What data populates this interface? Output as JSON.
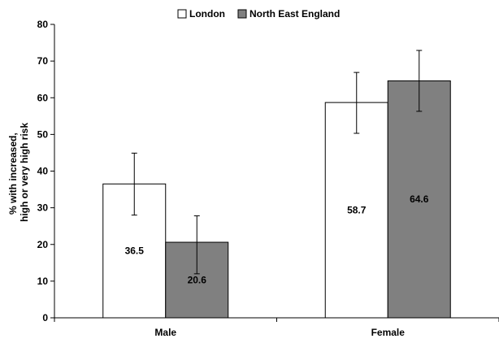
{
  "chart_data": {
    "type": "bar",
    "categories": [
      "Male",
      "Female"
    ],
    "series": [
      {
        "name": "London",
        "values": [
          36.5,
          58.7
        ],
        "error_low": [
          28.0,
          50.3
        ],
        "error_high": [
          44.9,
          66.9
        ],
        "color": "#ffffff"
      },
      {
        "name": "North East England",
        "values": [
          20.6,
          64.6
        ],
        "error_low": [
          12.0,
          56.3
        ],
        "error_high": [
          27.8,
          72.9
        ],
        "color": "#808080"
      }
    ],
    "title": "",
    "xlabel": "",
    "ylabel_lines": [
      "% with increased,",
      "high or very high risk"
    ],
    "ylim": [
      0,
      80
    ],
    "yticks": [
      0,
      10,
      20,
      30,
      40,
      50,
      60,
      70,
      80
    ],
    "data_labels": [
      [
        "36.5",
        "58.7"
      ],
      [
        "20.6",
        "64.6"
      ]
    ],
    "legend_position": "top-center",
    "grid": false
  }
}
